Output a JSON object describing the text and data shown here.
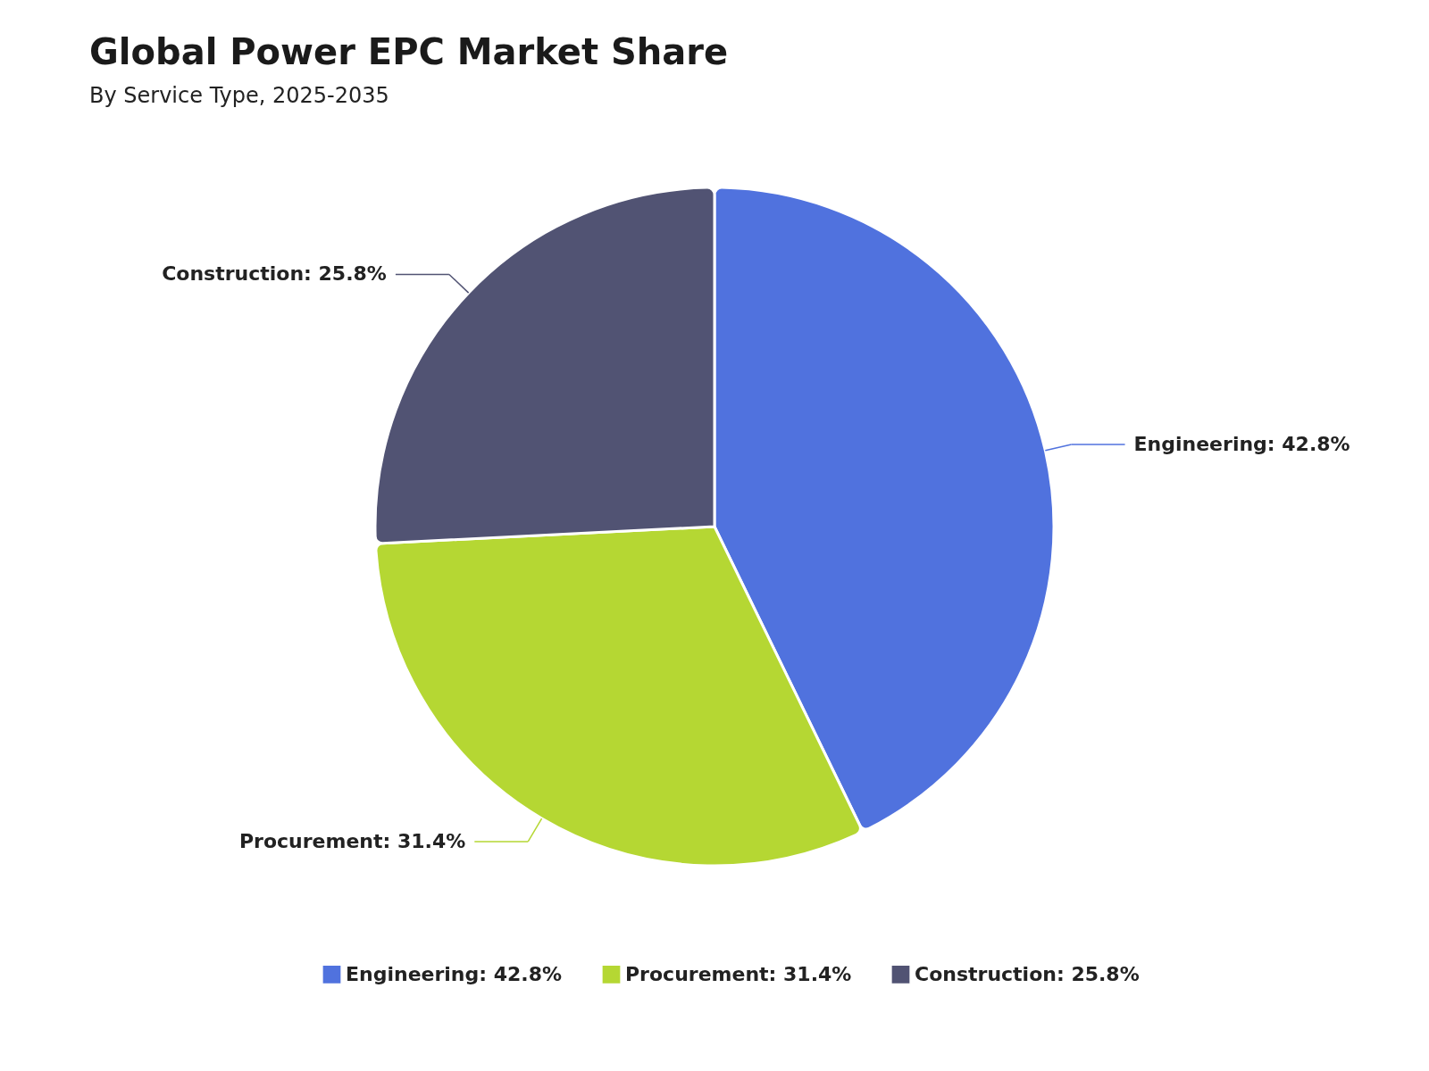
{
  "chart_data": {
    "type": "pie",
    "title": "Global Power EPC Market Share",
    "subtitle": "By Service Type, 2025-2035",
    "categories": [
      "Engineering",
      "Procurement",
      "Construction"
    ],
    "values": [
      42.8,
      31.4,
      25.8
    ],
    "value_labels": [
      "42.8%",
      "31.4%",
      "25.8%"
    ],
    "colors": [
      "#5072de",
      "#b5d733",
      "#515373"
    ],
    "legend": "bottom"
  }
}
